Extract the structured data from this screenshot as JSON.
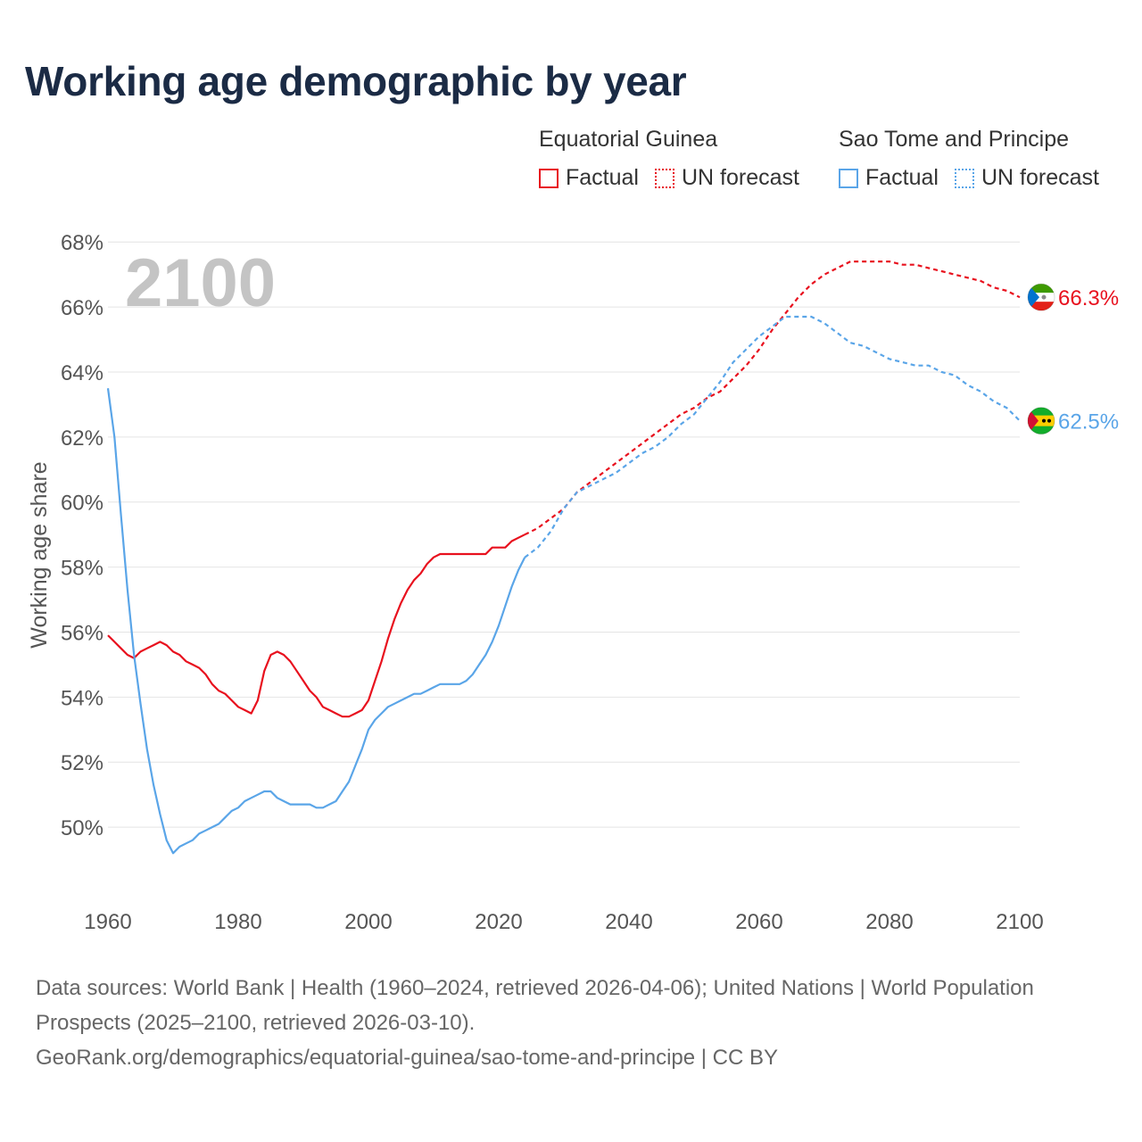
{
  "title": "Working age demographic by year",
  "year_watermark": "2100",
  "legend": [
    {
      "group": "Equatorial Guinea",
      "factual": "Factual",
      "forecast": "UN forecast",
      "color": "#e8111e"
    },
    {
      "group": "Sao Tome and Principe",
      "factual": "Factual",
      "forecast": "UN forecast",
      "color": "#5aa5e8"
    }
  ],
  "footer": {
    "sources": "Data sources: World Bank | Health (1960–2024, retrieved 2026-04-06); United Nations | World Population Prospects (2025–2100, retrieved 2026-03-10).",
    "credit": "GeoRank.org/demographics/equatorial-guinea/sao-tome-and-principe | CC BY"
  },
  "chart_data": {
    "type": "line",
    "title": "Working age demographic by year",
    "xlabel": "",
    "ylabel": "Working age share",
    "xlim": [
      1960,
      2100
    ],
    "ylim": [
      48,
      68.5
    ],
    "xticks": [
      "1960",
      "1980",
      "2000",
      "2020",
      "2040",
      "2060",
      "2080",
      "2100"
    ],
    "xtick_values": [
      1960,
      1980,
      2000,
      2020,
      2040,
      2060,
      2080,
      2100
    ],
    "yticks": [
      "50%",
      "52%",
      "54%",
      "56%",
      "58%",
      "60%",
      "62%",
      "64%",
      "66%",
      "68%"
    ],
    "ytick_values": [
      50,
      52,
      54,
      56,
      58,
      60,
      62,
      64,
      66,
      68
    ],
    "grid": true,
    "series": [
      {
        "name": "Equatorial Guinea",
        "color": "#e8111e",
        "end_label": "66.3%",
        "flag": "equatorial-guinea-flag-icon",
        "factual": [
          [
            1960,
            55.9
          ],
          [
            1961,
            55.7
          ],
          [
            1962,
            55.5
          ],
          [
            1963,
            55.3
          ],
          [
            1964,
            55.2
          ],
          [
            1965,
            55.4
          ],
          [
            1966,
            55.5
          ],
          [
            1967,
            55.6
          ],
          [
            1968,
            55.7
          ],
          [
            1969,
            55.6
          ],
          [
            1970,
            55.4
          ],
          [
            1971,
            55.3
          ],
          [
            1972,
            55.1
          ],
          [
            1973,
            55.0
          ],
          [
            1974,
            54.9
          ],
          [
            1975,
            54.7
          ],
          [
            1976,
            54.4
          ],
          [
            1977,
            54.2
          ],
          [
            1978,
            54.1
          ],
          [
            1979,
            53.9
          ],
          [
            1980,
            53.7
          ],
          [
            1981,
            53.6
          ],
          [
            1982,
            53.5
          ],
          [
            1983,
            53.9
          ],
          [
            1984,
            54.8
          ],
          [
            1985,
            55.3
          ],
          [
            1986,
            55.4
          ],
          [
            1987,
            55.3
          ],
          [
            1988,
            55.1
          ],
          [
            1989,
            54.8
          ],
          [
            1990,
            54.5
          ],
          [
            1991,
            54.2
          ],
          [
            1992,
            54.0
          ],
          [
            1993,
            53.7
          ],
          [
            1994,
            53.6
          ],
          [
            1995,
            53.5
          ],
          [
            1996,
            53.4
          ],
          [
            1997,
            53.4
          ],
          [
            1998,
            53.5
          ],
          [
            1999,
            53.6
          ],
          [
            2000,
            53.9
          ],
          [
            2001,
            54.5
          ],
          [
            2002,
            55.1
          ],
          [
            2003,
            55.8
          ],
          [
            2004,
            56.4
          ],
          [
            2005,
            56.9
          ],
          [
            2006,
            57.3
          ],
          [
            2007,
            57.6
          ],
          [
            2008,
            57.8
          ],
          [
            2009,
            58.1
          ],
          [
            2010,
            58.3
          ],
          [
            2011,
            58.4
          ],
          [
            2012,
            58.4
          ],
          [
            2013,
            58.4
          ],
          [
            2014,
            58.4
          ],
          [
            2015,
            58.4
          ],
          [
            2016,
            58.4
          ],
          [
            2017,
            58.4
          ],
          [
            2018,
            58.4
          ],
          [
            2019,
            58.6
          ],
          [
            2020,
            58.6
          ],
          [
            2021,
            58.6
          ],
          [
            2022,
            58.8
          ],
          [
            2023,
            58.9
          ],
          [
            2024,
            59.0
          ]
        ],
        "forecast": [
          [
            2024,
            59.0
          ],
          [
            2026,
            59.2
          ],
          [
            2028,
            59.5
          ],
          [
            2030,
            59.8
          ],
          [
            2032,
            60.3
          ],
          [
            2034,
            60.6
          ],
          [
            2036,
            60.9
          ],
          [
            2038,
            61.2
          ],
          [
            2040,
            61.5
          ],
          [
            2042,
            61.8
          ],
          [
            2044,
            62.1
          ],
          [
            2046,
            62.4
          ],
          [
            2048,
            62.7
          ],
          [
            2050,
            62.9
          ],
          [
            2052,
            63.2
          ],
          [
            2054,
            63.4
          ],
          [
            2056,
            63.8
          ],
          [
            2058,
            64.2
          ],
          [
            2060,
            64.7
          ],
          [
            2062,
            65.3
          ],
          [
            2064,
            65.8
          ],
          [
            2066,
            66.3
          ],
          [
            2068,
            66.7
          ],
          [
            2070,
            67.0
          ],
          [
            2072,
            67.2
          ],
          [
            2074,
            67.4
          ],
          [
            2076,
            67.4
          ],
          [
            2078,
            67.4
          ],
          [
            2080,
            67.4
          ],
          [
            2082,
            67.3
          ],
          [
            2084,
            67.3
          ],
          [
            2086,
            67.2
          ],
          [
            2088,
            67.1
          ],
          [
            2090,
            67.0
          ],
          [
            2092,
            66.9
          ],
          [
            2094,
            66.8
          ],
          [
            2096,
            66.6
          ],
          [
            2098,
            66.5
          ],
          [
            2100,
            66.3
          ]
        ]
      },
      {
        "name": "Sao Tome and Principe",
        "color": "#5aa5e8",
        "end_label": "62.5%",
        "flag": "sao-tome-and-principe-flag-icon",
        "factual": [
          [
            1960,
            63.5
          ],
          [
            1961,
            62.0
          ],
          [
            1962,
            59.6
          ],
          [
            1963,
            57.3
          ],
          [
            1964,
            55.3
          ],
          [
            1965,
            53.8
          ],
          [
            1966,
            52.4
          ],
          [
            1967,
            51.3
          ],
          [
            1968,
            50.4
          ],
          [
            1969,
            49.6
          ],
          [
            1970,
            49.2
          ],
          [
            1971,
            49.4
          ],
          [
            1972,
            49.5
          ],
          [
            1973,
            49.6
          ],
          [
            1974,
            49.8
          ],
          [
            1975,
            49.9
          ],
          [
            1976,
            50.0
          ],
          [
            1977,
            50.1
          ],
          [
            1978,
            50.3
          ],
          [
            1979,
            50.5
          ],
          [
            1980,
            50.6
          ],
          [
            1981,
            50.8
          ],
          [
            1982,
            50.9
          ],
          [
            1983,
            51.0
          ],
          [
            1984,
            51.1
          ],
          [
            1985,
            51.1
          ],
          [
            1986,
            50.9
          ],
          [
            1987,
            50.8
          ],
          [
            1988,
            50.7
          ],
          [
            1989,
            50.7
          ],
          [
            1990,
            50.7
          ],
          [
            1991,
            50.7
          ],
          [
            1992,
            50.6
          ],
          [
            1993,
            50.6
          ],
          [
            1994,
            50.7
          ],
          [
            1995,
            50.8
          ],
          [
            1996,
            51.1
          ],
          [
            1997,
            51.4
          ],
          [
            1998,
            51.9
          ],
          [
            1999,
            52.4
          ],
          [
            2000,
            53.0
          ],
          [
            2001,
            53.3
          ],
          [
            2002,
            53.5
          ],
          [
            2003,
            53.7
          ],
          [
            2004,
            53.8
          ],
          [
            2005,
            53.9
          ],
          [
            2006,
            54.0
          ],
          [
            2007,
            54.1
          ],
          [
            2008,
            54.1
          ],
          [
            2009,
            54.2
          ],
          [
            2010,
            54.3
          ],
          [
            2011,
            54.4
          ],
          [
            2012,
            54.4
          ],
          [
            2013,
            54.4
          ],
          [
            2014,
            54.4
          ],
          [
            2015,
            54.5
          ],
          [
            2016,
            54.7
          ],
          [
            2017,
            55.0
          ],
          [
            2018,
            55.3
          ],
          [
            2019,
            55.7
          ],
          [
            2020,
            56.2
          ],
          [
            2021,
            56.8
          ],
          [
            2022,
            57.4
          ],
          [
            2023,
            57.9
          ],
          [
            2024,
            58.3
          ]
        ],
        "forecast": [
          [
            2024,
            58.3
          ],
          [
            2026,
            58.6
          ],
          [
            2028,
            59.1
          ],
          [
            2030,
            59.8
          ],
          [
            2032,
            60.3
          ],
          [
            2034,
            60.5
          ],
          [
            2036,
            60.7
          ],
          [
            2038,
            60.9
          ],
          [
            2040,
            61.2
          ],
          [
            2042,
            61.5
          ],
          [
            2044,
            61.7
          ],
          [
            2046,
            62.0
          ],
          [
            2048,
            62.4
          ],
          [
            2050,
            62.7
          ],
          [
            2052,
            63.2
          ],
          [
            2054,
            63.7
          ],
          [
            2056,
            64.3
          ],
          [
            2058,
            64.7
          ],
          [
            2060,
            65.1
          ],
          [
            2062,
            65.4
          ],
          [
            2064,
            65.7
          ],
          [
            2066,
            65.7
          ],
          [
            2068,
            65.7
          ],
          [
            2070,
            65.5
          ],
          [
            2072,
            65.2
          ],
          [
            2074,
            64.9
          ],
          [
            2076,
            64.8
          ],
          [
            2078,
            64.6
          ],
          [
            2080,
            64.4
          ],
          [
            2082,
            64.3
          ],
          [
            2084,
            64.2
          ],
          [
            2086,
            64.2
          ],
          [
            2088,
            64.0
          ],
          [
            2090,
            63.9
          ],
          [
            2092,
            63.6
          ],
          [
            2094,
            63.4
          ],
          [
            2096,
            63.1
          ],
          [
            2098,
            62.9
          ],
          [
            2100,
            62.5
          ]
        ]
      }
    ]
  }
}
